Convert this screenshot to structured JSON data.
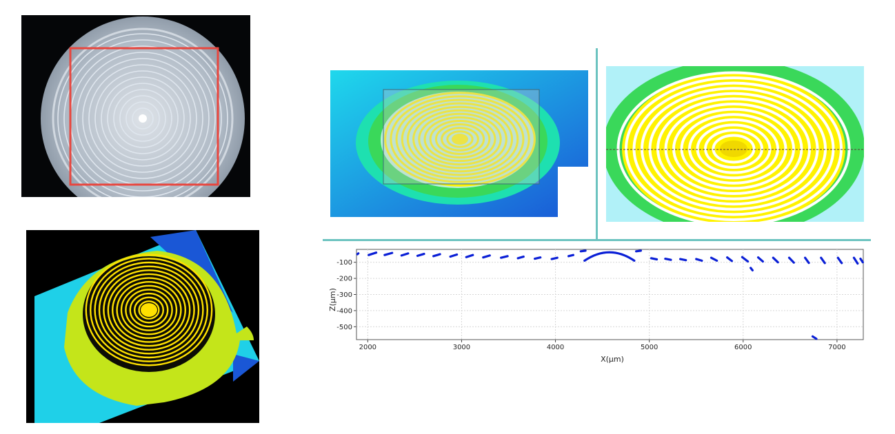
{
  "colors": {
    "divider": "#6cc3c0",
    "profile_marks": "#0a1fd6",
    "roi_rectangle": "#e8463e",
    "ring_yellow": "#fff200",
    "ring_green": "#3ad85a",
    "height_cyan": "#1fd0e8",
    "height_blue": "#1a57d6",
    "background_black": "#000000"
  },
  "panels": {
    "photo": {
      "icon": "fresnel-lens-photo",
      "roi_box": true
    },
    "render_3d": {
      "icon": "fresnel-lens-3d-height-render"
    },
    "height_map": {
      "icon": "fresnel-lens-height-map",
      "roi_box": true
    },
    "zoom_map": {
      "icon": "fresnel-lens-zoomed-height-map",
      "profile_line": true
    }
  },
  "chart_data": {
    "type": "scatter",
    "title": "",
    "xlabel": "X(μm)",
    "ylabel": "Z(μm)",
    "xlim": [
      1880,
      7280
    ],
    "ylim": [
      -580,
      -20
    ],
    "x_ticks": [
      2000,
      3000,
      4000,
      5000,
      6000,
      7000
    ],
    "y_ticks": [
      -100,
      -200,
      -300,
      -400,
      -500
    ],
    "grid": true,
    "segments": [
      {
        "x0": 1890,
        "z0": -50,
        "x1": 1900,
        "z1": -45
      },
      {
        "x0": 2010,
        "z0": -55,
        "x1": 2090,
        "z1": -40
      },
      {
        "x0": 2180,
        "z0": -55,
        "x1": 2260,
        "z1": -42
      },
      {
        "x0": 2360,
        "z0": -58,
        "x1": 2430,
        "z1": -45
      },
      {
        "x0": 2530,
        "z0": -60,
        "x1": 2600,
        "z1": -48
      },
      {
        "x0": 2700,
        "z0": -62,
        "x1": 2770,
        "z1": -50
      },
      {
        "x0": 2880,
        "z0": -65,
        "x1": 2950,
        "z1": -52
      },
      {
        "x0": 3050,
        "z0": -68,
        "x1": 3120,
        "z1": -55
      },
      {
        "x0": 3230,
        "z0": -70,
        "x1": 3300,
        "z1": -58
      },
      {
        "x0": 3420,
        "z0": -72,
        "x1": 3490,
        "z1": -62
      },
      {
        "x0": 3600,
        "z0": -75,
        "x1": 3660,
        "z1": -65
      },
      {
        "x0": 3780,
        "z0": -78,
        "x1": 3840,
        "z1": -70
      },
      {
        "x0": 3960,
        "z0": -80,
        "x1": 4020,
        "z1": -72
      },
      {
        "x0": 4140,
        "z0": -62,
        "x1": 4190,
        "z1": -55
      },
      {
        "x0": 4270,
        "z0": -32,
        "x1": 4320,
        "z1": -28
      },
      {
        "x0": 4860,
        "z0": -32,
        "x1": 4910,
        "z1": -28
      },
      {
        "x0": 5020,
        "z0": -75,
        "x1": 5080,
        "z1": -82
      },
      {
        "x0": 5170,
        "z0": -78,
        "x1": 5230,
        "z1": -85
      },
      {
        "x0": 5330,
        "z0": -80,
        "x1": 5390,
        "z1": -87
      },
      {
        "x0": 5500,
        "z0": -80,
        "x1": 5560,
        "z1": -90
      },
      {
        "x0": 5660,
        "z0": -72,
        "x1": 5720,
        "z1": -90
      },
      {
        "x0": 5830,
        "z0": -70,
        "x1": 5880,
        "z1": -92
      },
      {
        "x0": 5990,
        "z0": -68,
        "x1": 6050,
        "z1": -95
      },
      {
        "x0": 6080,
        "z0": -135,
        "x1": 6100,
        "z1": -150
      },
      {
        "x0": 6160,
        "z0": -70,
        "x1": 6210,
        "z1": -95
      },
      {
        "x0": 6320,
        "z0": -72,
        "x1": 6370,
        "z1": -100
      },
      {
        "x0": 6490,
        "z0": -72,
        "x1": 6540,
        "z1": -102
      },
      {
        "x0": 6660,
        "z0": -72,
        "x1": 6700,
        "z1": -104
      },
      {
        "x0": 6740,
        "z0": -560,
        "x1": 6780,
        "z1": -575
      },
      {
        "x0": 6830,
        "z0": -72,
        "x1": 6870,
        "z1": -105
      },
      {
        "x0": 7010,
        "z0": -72,
        "x1": 7050,
        "z1": -105
      },
      {
        "x0": 7180,
        "z0": -72,
        "x1": 7220,
        "z1": -108
      },
      {
        "x0": 7250,
        "z0": -78,
        "x1": 7275,
        "z1": -100
      }
    ],
    "arc": {
      "x_start": 4310,
      "x_end": 4840,
      "z_ends": -90,
      "z_peak": -38
    }
  }
}
